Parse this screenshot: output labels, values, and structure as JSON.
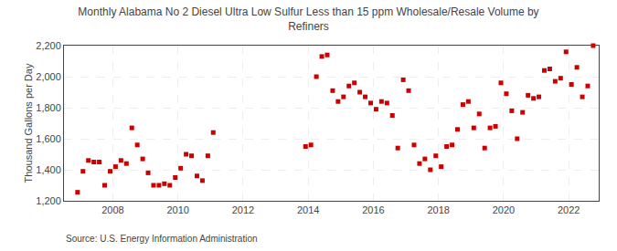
{
  "chart_data": {
    "type": "scatter",
    "title": "Monthly Alabama No 2 Diesel Ultra Low Sulfur Less than 15 ppm Wholesale/Resale Volume by\nRefiners",
    "ylabel": "Thousand Gallons per Day",
    "annotations": [
      "Source: U.S. Energy Information Administration"
    ],
    "color": "#cc0000",
    "marker": "square",
    "grid": true,
    "xlim": [
      2006.5,
      2022.92
    ],
    "xticks": [
      2008,
      2010,
      2012,
      2014,
      2016,
      2018,
      2020,
      2022
    ],
    "ylim": [
      1200,
      2200
    ],
    "yticks": [
      {
        "value": 1200,
        "label": "1,200"
      },
      {
        "value": 1400,
        "label": "1,400"
      },
      {
        "value": 1600,
        "label": "1,600"
      },
      {
        "value": 1800,
        "label": "1,800"
      },
      {
        "value": 2000,
        "label": "2,000"
      },
      {
        "value": 2200,
        "label": "2,200"
      }
    ],
    "x": [
      2006.917,
      2007.083,
      2007.25,
      2007.417,
      2007.583,
      2007.75,
      2007.917,
      2008.083,
      2008.25,
      2008.417,
      2008.583,
      2008.75,
      2008.917,
      2009.083,
      2009.25,
      2009.417,
      2009.583,
      2009.75,
      2009.917,
      2010.083,
      2010.25,
      2010.417,
      2010.583,
      2010.75,
      2010.917,
      2011.083,
      2013.917,
      2014.083,
      2014.25,
      2014.417,
      2014.583,
      2014.75,
      2014.917,
      2015.083,
      2015.25,
      2015.417,
      2015.583,
      2015.75,
      2015.917,
      2016.083,
      2016.25,
      2016.417,
      2016.583,
      2016.75,
      2016.917,
      2017.083,
      2017.25,
      2017.417,
      2017.583,
      2017.75,
      2017.917,
      2018.083,
      2018.25,
      2018.417,
      2018.583,
      2018.75,
      2018.917,
      2019.083,
      2019.25,
      2019.417,
      2019.583,
      2019.75,
      2019.917,
      2020.083,
      2020.25,
      2020.417,
      2020.583,
      2020.75,
      2020.917,
      2021.083,
      2021.25,
      2021.417,
      2021.583,
      2021.75,
      2021.917,
      2022.083,
      2022.25,
      2022.417,
      2022.583,
      2022.75
    ],
    "values": [
      1255,
      1390,
      1460,
      1450,
      1450,
      1300,
      1390,
      1420,
      1460,
      1440,
      1670,
      1560,
      1470,
      1380,
      1300,
      1300,
      1310,
      1300,
      1350,
      1410,
      1500,
      1490,
      1360,
      1330,
      1490,
      1640,
      1550,
      1560,
      2000,
      2130,
      2140,
      1910,
      1840,
      1870,
      1940,
      1960,
      1900,
      1870,
      1830,
      1790,
      1840,
      1830,
      1750,
      1540,
      1980,
      1910,
      1560,
      1440,
      1470,
      1400,
      1490,
      1420,
      1550,
      1560,
      1660,
      1820,
      1840,
      1670,
      1760,
      1540,
      1670,
      1680,
      1960,
      1890,
      1780,
      1600,
      1770,
      1880,
      1860,
      1870,
      2040,
      2050,
      1970,
      1990,
      2160,
      1950,
      2060,
      1870,
      1940,
      2200
    ]
  }
}
